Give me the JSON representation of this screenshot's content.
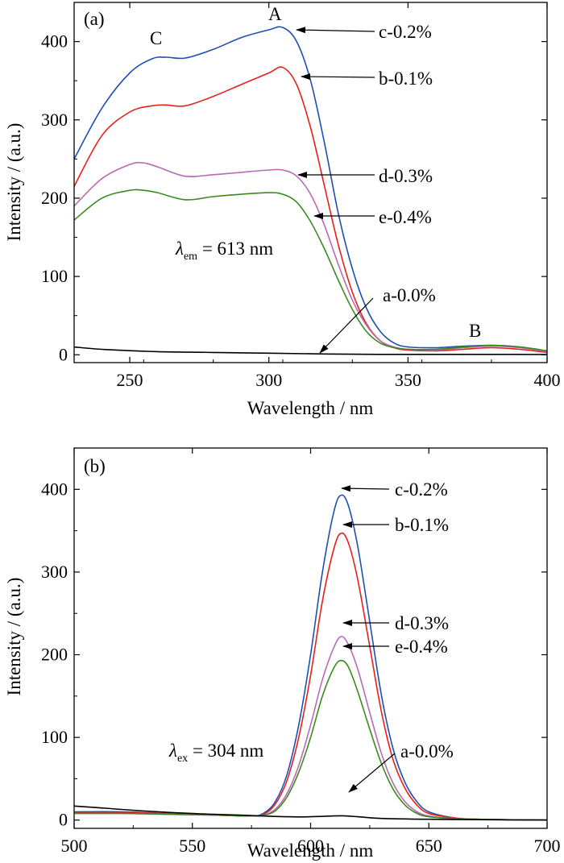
{
  "chart_data": [
    {
      "type": "line",
      "panel_label": "(a)",
      "xlabel": "Wavelength / nm",
      "ylabel": "Intensity / (a.u.)",
      "xlim": [
        230,
        400
      ],
      "ylim": [
        -10,
        450
      ],
      "xticks": [
        250,
        300,
        350,
        400
      ],
      "yticks": [
        0,
        100,
        200,
        300,
        400
      ],
      "legend": "none (arrow labels on curves)",
      "note_main": "λ",
      "note_sub": "em",
      "note_rest": " = 613 nm",
      "peak_labels": {
        "a": "A",
        "b": "B",
        "c": "C"
      },
      "series": [
        {
          "name": "c-0.2%",
          "color": "#1f4fb5",
          "x": [
            230,
            240,
            250,
            258,
            263,
            270,
            280,
            290,
            300,
            305,
            310,
            315,
            320,
            325,
            330,
            335,
            340,
            345,
            350,
            360,
            370,
            380,
            390,
            400
          ],
          "y": [
            250,
            315,
            360,
            378,
            380,
            379,
            390,
            405,
            415,
            418,
            400,
            350,
            270,
            180,
            110,
            60,
            30,
            15,
            10,
            9,
            11,
            12,
            10,
            5
          ]
        },
        {
          "name": "b-0.1%",
          "color": "#e8201b",
          "x": [
            230,
            240,
            250,
            258,
            263,
            270,
            280,
            290,
            300,
            305,
            310,
            315,
            320,
            325,
            330,
            335,
            340,
            345,
            350,
            360,
            370,
            380,
            390,
            400
          ],
          "y": [
            215,
            280,
            310,
            318,
            319,
            318,
            330,
            345,
            360,
            367,
            345,
            290,
            215,
            140,
            80,
            40,
            18,
            9,
            6,
            5,
            7,
            9,
            7,
            3
          ]
        },
        {
          "name": "d-0.3%",
          "color": "#b76ab5",
          "x": [
            230,
            240,
            250,
            255,
            260,
            270,
            280,
            290,
            300,
            305,
            310,
            315,
            320,
            325,
            330,
            335,
            340,
            345,
            350,
            360,
            370,
            380,
            390,
            400
          ],
          "y": [
            190,
            225,
            243,
            245,
            240,
            228,
            230,
            233,
            236,
            236,
            228,
            205,
            165,
            115,
            70,
            38,
            18,
            10,
            7,
            6,
            9,
            11,
            9,
            4
          ]
        },
        {
          "name": "e-0.4%",
          "color": "#3c8a1e",
          "x": [
            230,
            240,
            250,
            255,
            260,
            270,
            280,
            290,
            300,
            305,
            310,
            315,
            320,
            325,
            330,
            335,
            340,
            345,
            350,
            360,
            370,
            380,
            390,
            400
          ],
          "y": [
            172,
            200,
            210,
            210,
            207,
            198,
            202,
            205,
            207,
            205,
            195,
            170,
            135,
            95,
            58,
            30,
            15,
            9,
            7,
            7,
            10,
            12,
            10,
            5
          ]
        },
        {
          "name": "a-0.0%",
          "color": "#000000",
          "x": [
            230,
            240,
            260,
            280,
            300,
            320,
            340,
            360,
            380,
            400
          ],
          "y": [
            10,
            7,
            4,
            3,
            2,
            1,
            0.5,
            0.5,
            0.5,
            0.3
          ]
        }
      ]
    },
    {
      "type": "line",
      "panel_label": "(b)",
      "xlabel": "Wavelength / nm",
      "ylabel": "Intensity / (a.u.)",
      "xlim": [
        500,
        700
      ],
      "ylim": [
        -10,
        450
      ],
      "xticks": [
        500,
        550,
        600,
        650,
        700
      ],
      "yticks": [
        0,
        100,
        200,
        300,
        400
      ],
      "legend": "none (arrow labels on curves)",
      "note_main": "λ",
      "note_sub": "ex",
      "note_rest": " = 304 nm",
      "series": [
        {
          "name": "c-0.2%",
          "color": "#1f4fb5",
          "x": [
            500,
            520,
            540,
            560,
            575,
            580,
            585,
            590,
            595,
            600,
            605,
            610,
            613,
            616,
            620,
            625,
            630,
            635,
            640,
            645,
            650,
            660,
            670,
            700
          ],
          "y": [
            10,
            10,
            8,
            6,
            5,
            8,
            22,
            55,
            115,
            200,
            300,
            375,
            393,
            380,
            330,
            240,
            150,
            85,
            45,
            22,
            10,
            3,
            1,
            0
          ]
        },
        {
          "name": "b-0.1%",
          "color": "#e8201b",
          "x": [
            500,
            520,
            540,
            560,
            575,
            580,
            585,
            590,
            595,
            600,
            605,
            610,
            613,
            616,
            620,
            625,
            630,
            635,
            640,
            645,
            650,
            660,
            670,
            700
          ],
          "y": [
            9,
            9,
            8,
            6,
            5,
            7,
            19,
            48,
            100,
            175,
            265,
            330,
            347,
            335,
            290,
            210,
            130,
            72,
            38,
            18,
            8,
            3,
            1,
            0
          ]
        },
        {
          "name": "d-0.3%",
          "color": "#b76ab5",
          "x": [
            500,
            520,
            540,
            560,
            575,
            580,
            585,
            590,
            595,
            600,
            605,
            610,
            613,
            616,
            620,
            625,
            630,
            635,
            640,
            645,
            650,
            660,
            670,
            700
          ],
          "y": [
            8,
            8,
            7,
            6,
            5,
            6,
            13,
            32,
            66,
            115,
            170,
            210,
            222,
            212,
            182,
            130,
            80,
            44,
            22,
            10,
            5,
            2,
            1,
            0
          ]
        },
        {
          "name": "e-0.4%",
          "color": "#3c8a1e",
          "x": [
            500,
            520,
            540,
            560,
            575,
            580,
            585,
            590,
            595,
            600,
            605,
            610,
            613,
            616,
            620,
            625,
            630,
            635,
            640,
            645,
            650,
            660,
            670,
            700
          ],
          "y": [
            8,
            8,
            7,
            6,
            5,
            6,
            11,
            28,
            58,
            100,
            150,
            185,
            193,
            185,
            155,
            110,
            68,
            37,
            18,
            8,
            4,
            2,
            1,
            0
          ]
        },
        {
          "name": "a-0.0%",
          "color": "#000000",
          "x": [
            500,
            510,
            530,
            550,
            570,
            590,
            600,
            610,
            615,
            620,
            630,
            650,
            670,
            700
          ],
          "y": [
            17,
            15,
            11,
            8,
            6,
            4,
            4,
            5,
            5,
            4,
            2,
            1,
            0.5,
            0
          ]
        }
      ]
    }
  ]
}
